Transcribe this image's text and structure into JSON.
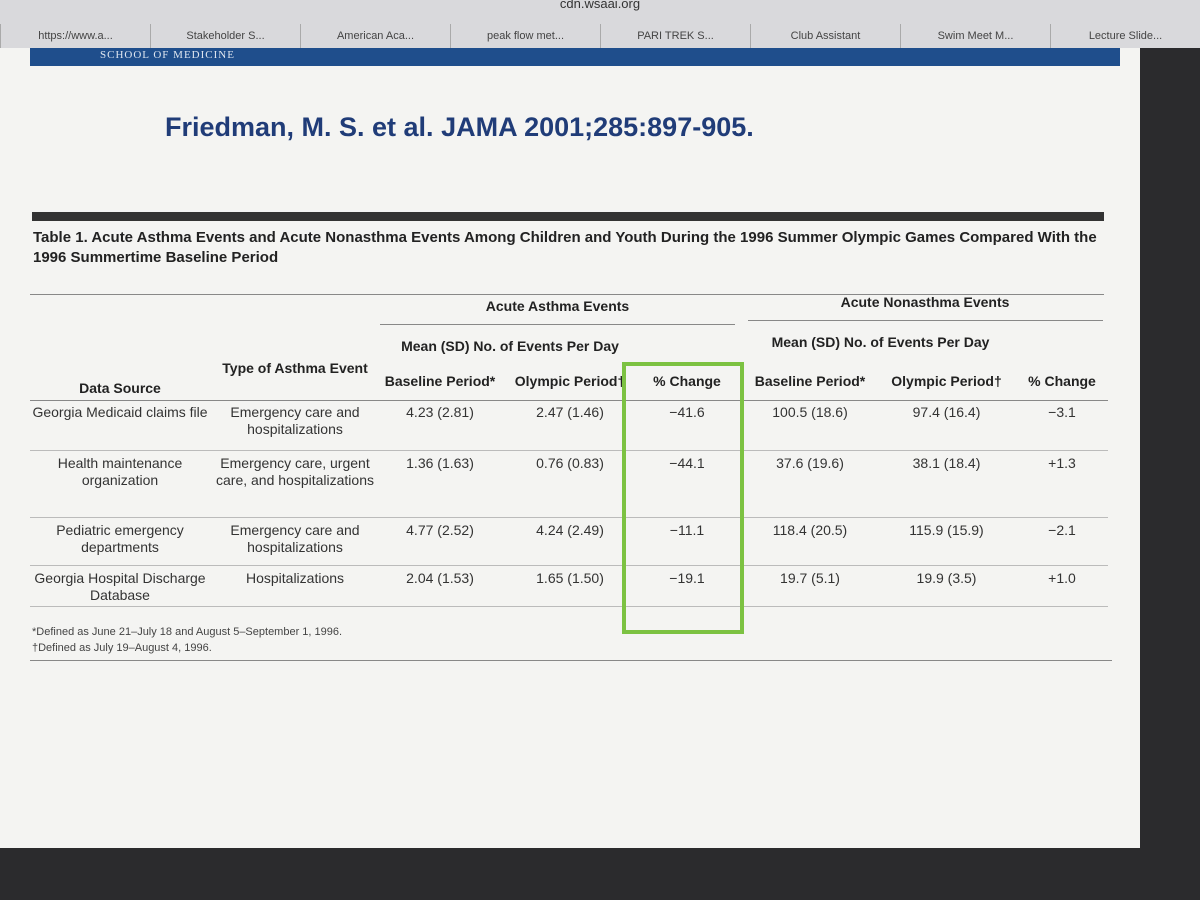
{
  "browser": {
    "url": "cdn.wsaai.org",
    "tabs": [
      "https://www.a...",
      "Stakeholder S...",
      "American Aca...",
      "peak flow met...",
      "PARI TREK S...",
      "Club Assistant",
      "Swim Meet M...",
      "Lecture Slide..."
    ]
  },
  "slide": {
    "header": "SCHOOL OF MEDICINE",
    "citation": "Friedman, M. S. et al. JAMA 2001;285:897-905.",
    "table": {
      "caption": "Table 1. Acute Asthma Events and Acute Nonasthma Events Among Children and Youth During the 1996 Summer Olympic Games Compared With the 1996 Summertime Baseline Period",
      "groups": [
        "Acute Asthma Events",
        "Acute Nonasthma Events"
      ],
      "subgroups": [
        "Mean (SD) No. of Events Per Day",
        "Mean (SD) No. of Events Per Day"
      ],
      "columns": [
        "Data Source",
        "Type of Asthma Event",
        "Baseline Period*",
        "Olympic Period†",
        "% Change",
        "Baseline Period*",
        "Olympic Period†",
        "% Change"
      ],
      "rows": [
        [
          "Georgia Medicaid claims file",
          "Emergency care and hospitalizations",
          "4.23 (2.81)",
          "2.47 (1.46)",
          "−41.6",
          "100.5 (18.6)",
          "97.4 (16.4)",
          "−3.1"
        ],
        [
          "Health maintenance organization",
          "Emergency care, urgent care, and hospitalizations",
          "1.36 (1.63)",
          "0.76 (0.83)",
          "−44.1",
          "37.6 (19.6)",
          "38.1 (18.4)",
          "+1.3"
        ],
        [
          "Pediatric emergency departments",
          "Emergency care and hospitalizations",
          "4.77 (2.52)",
          "4.24 (2.49)",
          "−11.1",
          "118.4 (20.5)",
          "115.9 (15.9)",
          "−2.1"
        ],
        [
          "Georgia Hospital Discharge Database",
          "Hospitalizations",
          "2.04 (1.53)",
          "1.65 (1.50)",
          "−19.1",
          "19.7 (5.1)",
          "19.9 (3.5)",
          "+1.0"
        ]
      ],
      "footnotes": [
        "*Defined as June 21–July 18 and August 5–September 1, 1996.",
        "†Defined as July 19–August 4, 1996."
      ]
    }
  }
}
